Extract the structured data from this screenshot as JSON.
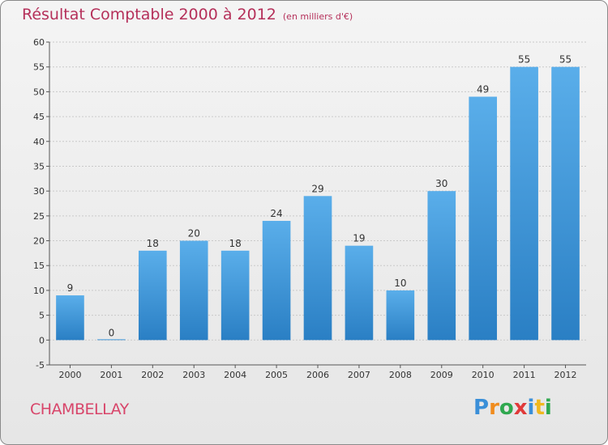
{
  "title": "Résultat Comptable 2000 à 2012",
  "subtitle": "(en milliers d'€)",
  "commune": "CHAMBELLAY",
  "logo": [
    "P",
    "r",
    "o",
    "x",
    "i",
    "t",
    "i"
  ],
  "logo_colors": [
    "#3a8fd8",
    "#f08c1e",
    "#2fa84f",
    "#e03a3a",
    "#3a8fd8",
    "#f0b81e",
    "#2fa84f"
  ],
  "colors": {
    "bar_light": "#5aaeea",
    "bar_dark": "#2a7fc4",
    "title": "#b5305a",
    "commune": "#d8456a"
  },
  "chart_data": {
    "type": "bar",
    "categories": [
      "2000",
      "2001",
      "2002",
      "2003",
      "2004",
      "2005",
      "2006",
      "2007",
      "2008",
      "2009",
      "2010",
      "2011",
      "2012"
    ],
    "values": [
      9,
      0,
      18,
      20,
      18,
      24,
      29,
      19,
      10,
      30,
      49,
      55,
      55
    ],
    "ylim": [
      -5,
      60
    ],
    "yticks": [
      -5,
      0,
      5,
      10,
      15,
      20,
      25,
      30,
      35,
      40,
      45,
      50,
      55,
      60
    ],
    "grid": true
  }
}
